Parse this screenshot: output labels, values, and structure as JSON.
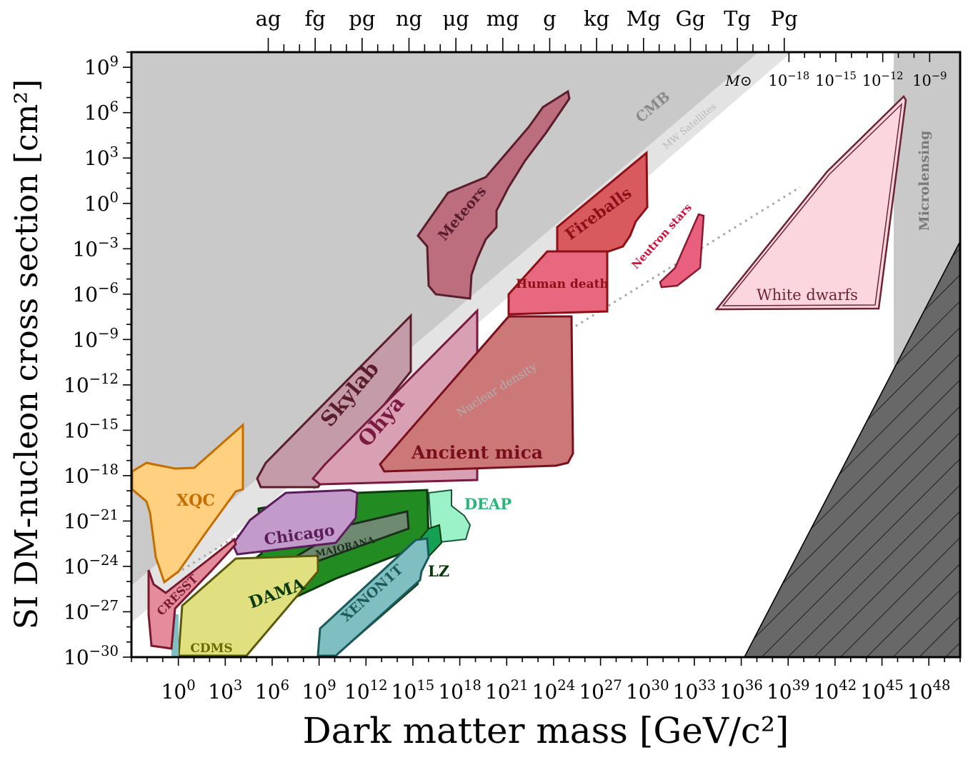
{
  "chart_data": {
    "type": "area",
    "title": "",
    "xlabel": "Dark matter mass [GeV/c²]",
    "ylabel": "SI DM-nucleon cross section [cm²]",
    "x_scale": "log",
    "y_scale": "log",
    "xlim_log10": [
      -3,
      50
    ],
    "ylim_log10": [
      -30,
      10
    ],
    "x_tick_labels": [
      "10^0",
      "10^3",
      "10^6",
      "10^9",
      "10^12",
      "10^15",
      "10^18",
      "10^21",
      "10^24",
      "10^27",
      "10^30",
      "10^33",
      "10^36",
      "10^39",
      "10^42",
      "10^45",
      "10^48"
    ],
    "x_tick_exponents": [
      0,
      3,
      6,
      9,
      12,
      15,
      18,
      21,
      24,
      27,
      30,
      33,
      36,
      39,
      42,
      45,
      48
    ],
    "y_tick_labels": [
      "10^9",
      "10^6",
      "10^3",
      "10^0",
      "10^-3",
      "10^-6",
      "10^-9",
      "10^-12",
      "10^-15",
      "10^-18",
      "10^-21",
      "10^-24",
      "10^-27",
      "10^-30"
    ],
    "y_tick_exponents": [
      9,
      6,
      3,
      0,
      -3,
      -6,
      -9,
      -12,
      -15,
      -18,
      -21,
      -24,
      -27,
      -30
    ],
    "top_axis_mass_labels": [
      "ag",
      "fg",
      "pg",
      "ng",
      "μg",
      "mg",
      "g",
      "kg",
      "Mg",
      "Gg",
      "Tg",
      "Pg"
    ],
    "top_axis_mass_log10_GeV": [
      5.75,
      8.75,
      11.75,
      14.75,
      17.75,
      20.75,
      23.75,
      26.75,
      29.75,
      32.75,
      35.75,
      38.75
    ],
    "solar_mass_axis": {
      "symbol": "M⊙",
      "labels": [
        "10^-18",
        "10^-15",
        "10^-12",
        "10^-9"
      ],
      "log10_GeV": [
        39.05,
        42.05,
        45.05,
        48.05
      ]
    },
    "grid": false,
    "regions": [
      {
        "name": "CMB",
        "color": "#c9c9c9",
        "label": "CMB"
      },
      {
        "name": "MW Satellites",
        "color": "#e3e3e3",
        "label": "MW Satellites"
      },
      {
        "name": "Microlensing",
        "color": "#c9c9c9",
        "label": "Microlensing"
      },
      {
        "name": "Meteors",
        "color": "#bc6e7e",
        "label": "Meteors"
      },
      {
        "name": "Fireballs",
        "color": "#d95a5e",
        "label": "Fireballs"
      },
      {
        "name": "Human death",
        "color": "#e86880",
        "label": "Human death"
      },
      {
        "name": "Neutron stars",
        "color": "#e8607e",
        "label": "Neutron stars"
      },
      {
        "name": "White dwarfs",
        "color": "#fcd6df",
        "label": "White dwarfs"
      },
      {
        "name": "Skylab",
        "color": "#c49ba8",
        "label": "Skylab"
      },
      {
        "name": "Ohya",
        "color": "#d9a0b4",
        "label": "Ohya"
      },
      {
        "name": "Ancient mica",
        "color": "#cc7878",
        "label": "Ancient mica"
      },
      {
        "name": "XQC",
        "color": "#fed080",
        "label": "XQC"
      },
      {
        "name": "Chicago",
        "color": "#c29bcb",
        "label": "Chicago"
      },
      {
        "name": "CRESST",
        "color": "#e48c9c",
        "label": "CRESST"
      },
      {
        "name": "CDMS",
        "color": "#e0e080",
        "label": "CDMS"
      },
      {
        "name": "DAMA",
        "color": "#228b22",
        "label": "DAMA"
      },
      {
        "name": "MAJORANA",
        "color": "#6e8a70",
        "label": "MAJORANA"
      },
      {
        "name": "XENON1T",
        "color": "#7fbfc2",
        "label": "XENON1T"
      },
      {
        "name": "LZ",
        "color": "#15a155",
        "label": "LZ"
      },
      {
        "name": "DEAP",
        "color": "#9cf2c8",
        "label": "DEAP"
      }
    ],
    "lines": [
      {
        "name": "Nuclear density",
        "style": "dotted",
        "color": "#a8a8a8",
        "label": "Nuclear density"
      }
    ]
  }
}
